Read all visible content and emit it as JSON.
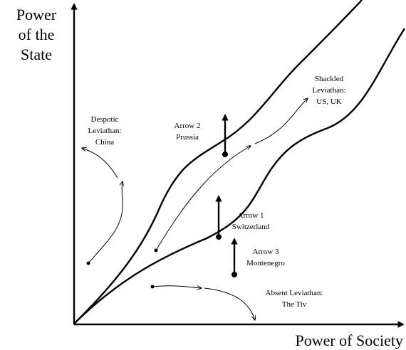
{
  "axes": {
    "y_label": [
      "Power",
      "of the",
      "State"
    ],
    "x_label": "Power of Society"
  },
  "labels": {
    "despotic": [
      "Despotic",
      "Leviathan:",
      "China"
    ],
    "shackled": [
      "Shackled",
      "Leviathan:",
      "US, UK"
    ],
    "absent": [
      "Absent Leviathan:",
      "The Tiv"
    ],
    "arrow1": [
      "Arrow 1",
      "Switzerland"
    ],
    "arrow2": [
      "Arrow 2",
      "Prussia"
    ],
    "arrow3": [
      "Arrow 3",
      "Montenegro"
    ]
  }
}
